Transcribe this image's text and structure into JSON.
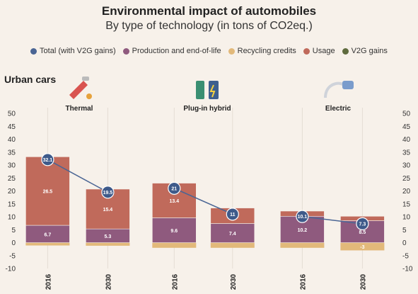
{
  "header": {
    "title": "Environmental impact of automobiles",
    "subtitle": "By type of technology (in tons of CO2eq.)"
  },
  "section_title": "Urban cars",
  "legend": [
    {
      "label": "Total (with V2G gains)",
      "color": "#4a6594"
    },
    {
      "label": "Production and end-of-life",
      "color": "#8f5a7e"
    },
    {
      "label": "Recycling credits",
      "color": "#e2b97a"
    },
    {
      "label": "Usage",
      "color": "#c06a5b"
    },
    {
      "label": "V2G gains",
      "color": "#5f6b3e"
    }
  ],
  "chart_data": {
    "type": "bar",
    "stacked": true,
    "ylim": [
      -10,
      50
    ],
    "yticks": [
      -10,
      -5,
      0,
      5,
      10,
      15,
      20,
      25,
      30,
      35,
      40,
      45,
      50
    ],
    "grid": false,
    "legend_position": "top",
    "groups": [
      {
        "name": "Thermal",
        "icon": "fuel-pump-icon",
        "categories": [
          {
            "x": "2016",
            "production": 6.7,
            "usage": 26.5,
            "recycling": -1.1,
            "total": 32.1,
            "labels": {
              "production": "6.7",
              "usage": "26.5",
              "total": "32.1"
            }
          },
          {
            "x": "2030",
            "production": 5.3,
            "usage": 15.4,
            "recycling": -1.2,
            "total": 19.5,
            "labels": {
              "production": "5.3",
              "usage": "15.4",
              "total": "19.5"
            }
          }
        ]
      },
      {
        "name": "Plug-in hybrid",
        "icon": "hybrid-charger-icon",
        "categories": [
          {
            "x": "2016",
            "production": 9.6,
            "usage": 13.4,
            "recycling": -2,
            "total": 21,
            "labels": {
              "production": "9.6",
              "usage": "13.4",
              "total": "21"
            }
          },
          {
            "x": "2030",
            "production": 7.4,
            "usage": 6,
            "recycling": -2,
            "total": 11,
            "labels": {
              "production": "7.4",
              "total": "11"
            }
          }
        ]
      },
      {
        "name": "Electric",
        "icon": "ev-plug-icon",
        "categories": [
          {
            "x": "2016",
            "production": 10.2,
            "usage": 2,
            "recycling": -2,
            "total": 10.1,
            "labels": {
              "production": "10.2",
              "total": "10.1"
            }
          },
          {
            "x": "2030",
            "production": 8.5,
            "usage": 1.7,
            "recycling": -3,
            "total": 7.3,
            "labels": {
              "production": "8.5",
              "recycling": "-3",
              "total": "7.3"
            }
          }
        ]
      }
    ],
    "colors": {
      "production": "#8f5a7e",
      "usage": "#c06a5b",
      "recycling": "#e2b97a",
      "total_line": "#4a6594",
      "total_dot": "#3e5a8a"
    }
  }
}
